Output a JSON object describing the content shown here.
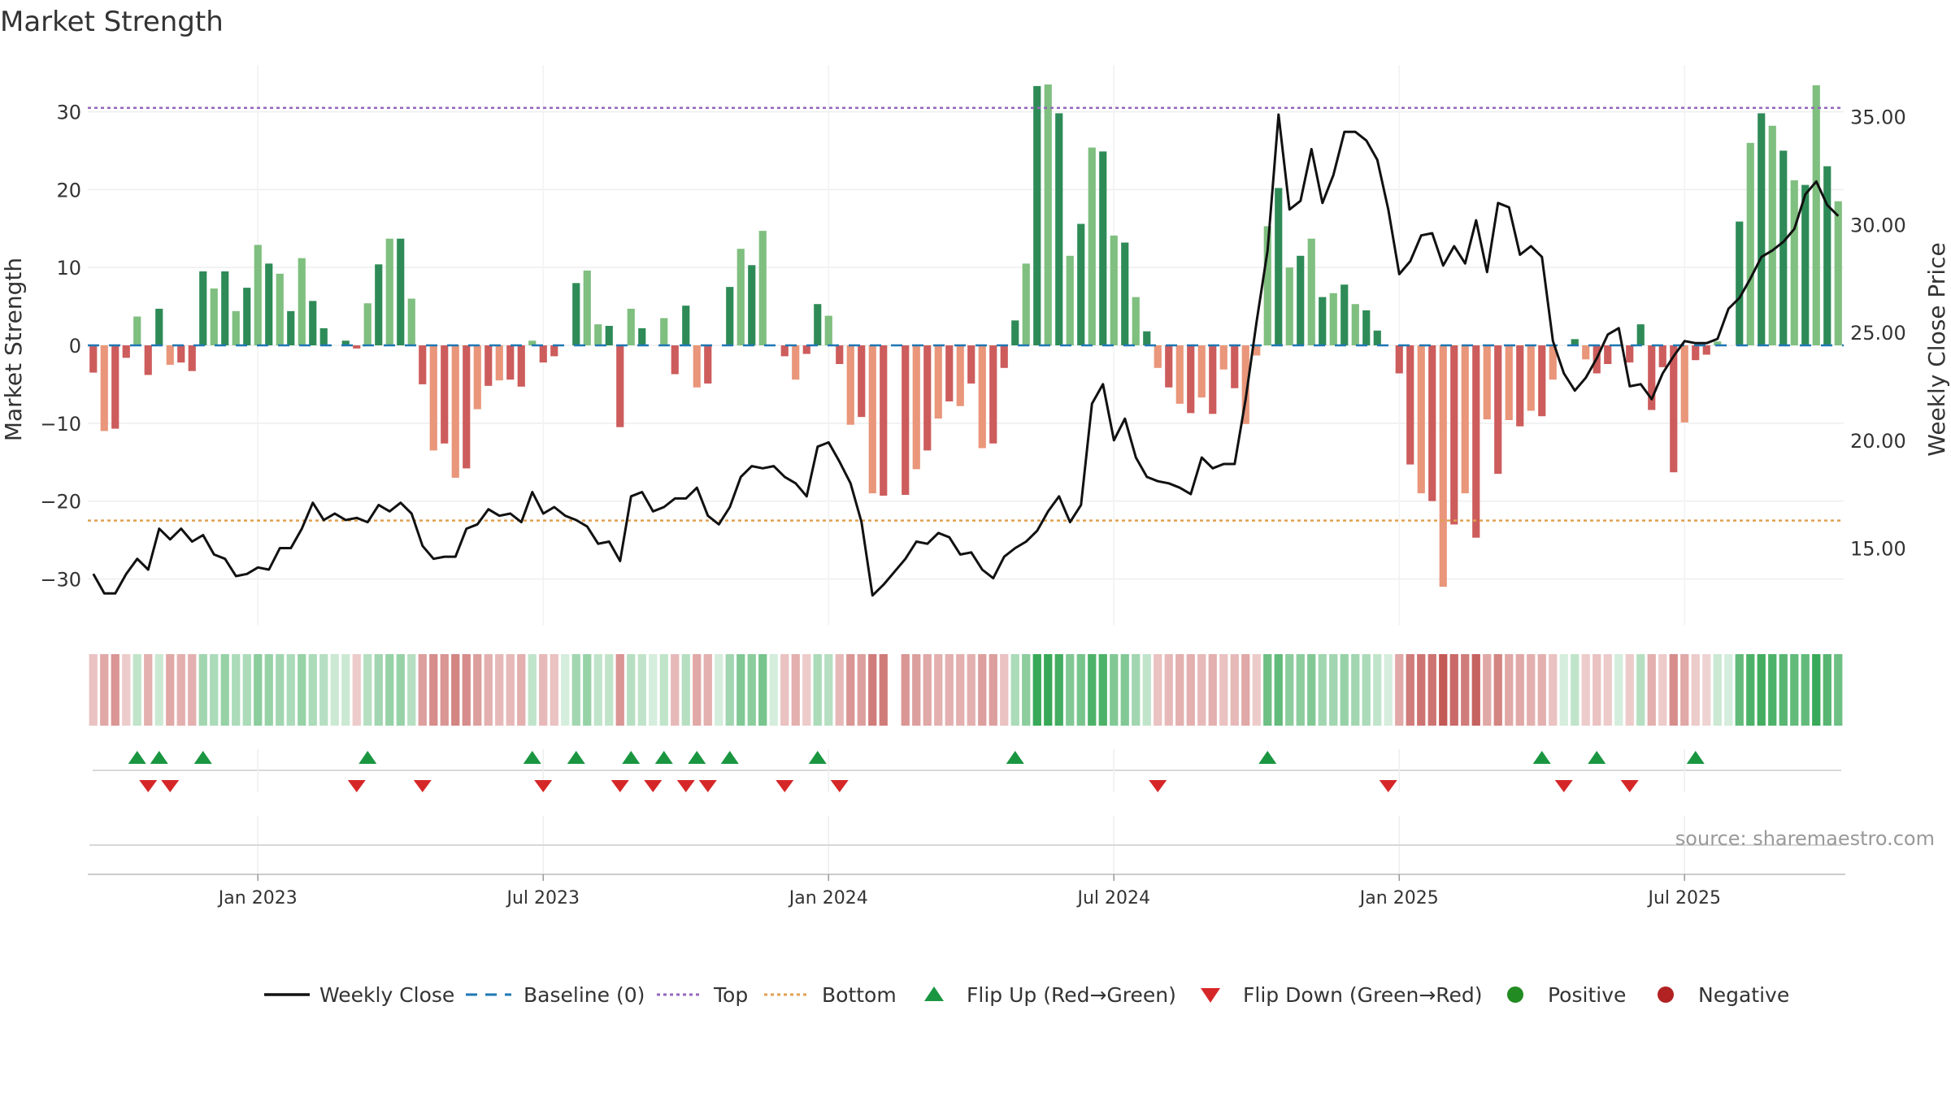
{
  "chart_data": {
    "type": "bar",
    "title": "Market Strength",
    "ylabel_left": "Market Strength",
    "ylabel_right": "Weekly Close Price",
    "source": "source: sharemaestro.com",
    "left_ylim": [
      -36,
      36
    ],
    "left_ticks": [
      30,
      20,
      10,
      0,
      -10,
      -20,
      -30
    ],
    "left_tick_labels": [
      "30",
      "20",
      "10",
      "0",
      "−10",
      "−20",
      "−30"
    ],
    "right_ylim": [
      11.4,
      37.4
    ],
    "right_ticks": [
      35,
      30,
      25,
      20,
      15
    ],
    "right_tick_labels": [
      "35.00",
      "30.00",
      "25.00",
      "20.00",
      "15.00"
    ],
    "top_line": 30.5,
    "bottom_line": -22.5,
    "x_tick_labels": [
      "Jan 2023",
      "Jul 2023",
      "Jan 2024",
      "Jul 2024",
      "Jan 2025",
      "Jul 2025"
    ],
    "x_tick_weeks": [
      15,
      41,
      67,
      93,
      119,
      145
    ],
    "strength": [
      -3.5,
      -11,
      -10.7,
      -1.6,
      3.7,
      -3.8,
      4.7,
      -2.5,
      -2.2,
      -3.3,
      9.5,
      7.3,
      9.5,
      4.4,
      7.4,
      12.9,
      10.5,
      9.2,
      4.4,
      11.2,
      5.7,
      2.2,
      0,
      0.6,
      -0.4,
      5.4,
      10.4,
      13.7,
      13.7,
      6,
      -5,
      -13.5,
      -12.6,
      -17,
      -15.8,
      -8.2,
      -5.2,
      -4.5,
      -4.4,
      -5.3,
      0.6,
      -2.2,
      -1.4,
      0,
      8,
      9.6,
      2.7,
      2.5,
      -10.5,
      4.7,
      2.2,
      0,
      3.5,
      -3.7,
      5.1,
      -5.4,
      -4.9,
      0,
      7.5,
      12.4,
      10.3,
      14.7,
      0,
      -1.4,
      -4.4,
      -1.1,
      5.3,
      3.8,
      -2.4,
      -10.2,
      -9.2,
      -19,
      -19.3,
      0,
      -19.2,
      -15.9,
      -13.5,
      -9.4,
      -7.2,
      -7.8,
      -4.9,
      -13.2,
      -12.6,
      -2.9,
      3.2,
      10.5,
      33.3,
      33.5,
      29.8,
      11.5,
      15.6,
      25.4,
      24.9,
      14.1,
      13.2,
      6.2,
      1.8,
      -2.9,
      -5.4,
      -7.5,
      -8.7,
      -6.7,
      -8.8,
      -3.1,
      -5.5,
      -10.1,
      -1.3,
      15.3,
      20.2,
      10,
      11.5,
      13.7,
      6.2,
      6.7,
      7.8,
      5.3,
      4.5,
      1.9,
      0,
      -3.6,
      -15.3,
      -19,
      -20,
      -31,
      -23,
      -19,
      -24.7,
      -9.5,
      -16.5,
      -9.6,
      -10.4,
      -8.4,
      -9.1,
      -4.4,
      0,
      0.8,
      -1.8,
      -3.6,
      -2.4,
      0,
      -2.2,
      2.7,
      -8.3,
      -2.8,
      -16.3,
      -9.9,
      -1.9,
      -1.2,
      0.5,
      0,
      15.9,
      26,
      29.8,
      28.2,
      25,
      21.2,
      20.6,
      33.4,
      23,
      18.5
    ],
    "weekly_close": [
      13.8,
      12.9,
      12.9,
      13.8,
      14.5,
      14,
      15.9,
      15.4,
      15.9,
      15.3,
      15.6,
      14.7,
      14.5,
      13.7,
      13.8,
      14.1,
      14,
      15,
      15,
      15.9,
      17.1,
      16.3,
      16.6,
      16.3,
      16.4,
      16.2,
      17,
      16.7,
      17.1,
      16.6,
      15.1,
      14.5,
      14.6,
      14.6,
      15.9,
      16.1,
      16.8,
      16.5,
      16.6,
      16.2,
      17.6,
      16.6,
      16.9,
      16.5,
      16.3,
      16,
      15.2,
      15.3,
      14.4,
      17.4,
      17.6,
      16.7,
      16.9,
      17.3,
      17.3,
      17.8,
      16.5,
      16.1,
      16.9,
      18.3,
      18.8,
      18.7,
      18.8,
      18.3,
      18,
      17.4,
      19.7,
      19.9,
      19,
      18,
      16.2,
      12.8,
      13.3,
      13.9,
      14.5,
      15.3,
      15.2,
      15.7,
      15.5,
      14.7,
      14.8,
      14,
      13.6,
      14.6,
      15,
      15.3,
      15.8,
      16.7,
      17.4,
      16.2,
      17,
      21.7,
      22.6,
      20,
      21,
      19.2,
      18.3,
      18.1,
      18,
      17.8,
      17.5,
      19.2,
      18.7,
      18.9,
      18.9,
      21.9,
      25.5,
      28.8,
      35.1,
      30.7,
      31.1,
      33.5,
      31,
      32.3,
      34.3,
      34.3,
      33.9,
      33,
      30.7,
      27.7,
      28.3,
      29.5,
      29.6,
      28.1,
      29,
      28.2,
      30.2,
      27.8,
      31,
      30.8,
      28.6,
      29,
      28.5,
      24.6,
      23.1,
      22.3,
      22.9,
      23.8,
      24.9,
      25.2,
      22.5,
      22.6,
      21.9,
      23.1,
      23.9,
      24.6,
      24.5,
      24.5,
      24.7,
      26.1,
      26.6,
      27.5,
      28.5,
      28.8,
      29.2,
      29.8,
      31.4,
      32,
      30.9,
      30.4
    ],
    "status_strip": [
      0.35,
      0.5,
      0.6,
      0.3,
      0.3,
      0.45,
      0.25,
      0.5,
      0.45,
      0.45,
      0.45,
      0.4,
      0.5,
      0.4,
      0.4,
      0.55,
      0.5,
      0.45,
      0.4,
      0.5,
      0.4,
      0.35,
      0.25,
      0.25,
      0.3,
      0.35,
      0.45,
      0.5,
      0.5,
      0.35,
      0.55,
      0.65,
      0.6,
      0.7,
      0.65,
      0.55,
      0.45,
      0.4,
      0.4,
      0.45,
      0.3,
      0.4,
      0.35,
      0.2,
      0.45,
      0.5,
      0.3,
      0.3,
      0.6,
      0.35,
      0.3,
      0.2,
      0.3,
      0.4,
      0.35,
      0.5,
      0.45,
      0.2,
      0.45,
      0.6,
      0.55,
      0.65,
      0.2,
      0.35,
      0.45,
      0.3,
      0.4,
      0.35,
      0.4,
      0.6,
      0.55,
      0.75,
      0.75,
      0,
      0.6,
      0.55,
      0.5,
      0.45,
      0.45,
      0.45,
      0.45,
      0.55,
      0.55,
      0.35,
      0.4,
      0.55,
      0.95,
      0.95,
      0.9,
      0.6,
      0.65,
      0.85,
      0.85,
      0.6,
      0.6,
      0.45,
      0.3,
      0.35,
      0.4,
      0.45,
      0.45,
      0.4,
      0.45,
      0.35,
      0.4,
      0.5,
      0.3,
      0.7,
      0.75,
      0.55,
      0.55,
      0.6,
      0.45,
      0.45,
      0.5,
      0.45,
      0.4,
      0.3,
      0.2,
      0.5,
      0.75,
      0.8,
      0.8,
      0.95,
      0.85,
      0.75,
      0.9,
      0.5,
      0.7,
      0.5,
      0.5,
      0.45,
      0.45,
      0.35,
      0.2,
      0.3,
      0.3,
      0.35,
      0.3,
      0.2,
      0.3,
      0.35,
      0.45,
      0.3,
      0.65,
      0.5,
      0.3,
      0.25,
      0.25,
      0.2,
      0.75,
      0.85,
      0.9,
      0.85,
      0.8,
      0.75,
      0.75,
      0.95,
      0.8,
      0.7
    ],
    "flip_up_weeks": [
      4,
      6,
      10,
      25,
      40,
      44,
      49,
      52,
      55,
      58,
      66,
      84,
      107,
      132,
      137,
      146
    ],
    "flip_down_weeks": [
      5,
      7,
      24,
      30,
      41,
      48,
      51,
      54,
      56,
      63,
      68,
      97,
      118,
      134,
      140
    ],
    "legend": [
      "Weekly Close",
      "Baseline (0)",
      "Top",
      "Bottom",
      "Flip Up (Red→Green)",
      "Flip Down (Green→Red)",
      "Positive",
      "Negative"
    ],
    "colors": {
      "pos_strong": "#2e8b57",
      "pos_light": "#7fbf7f",
      "neg_strong": "#cd5c5c",
      "neg_light": "#e9967a",
      "close_line": "#111111",
      "baseline": "#1f77b4",
      "top": "#9467bd",
      "bottom": "#e0a050",
      "flip_up": "#1a9641",
      "flip_down": "#d62728",
      "positive_dot": "#228b22",
      "negative_dot": "#b22222"
    }
  }
}
